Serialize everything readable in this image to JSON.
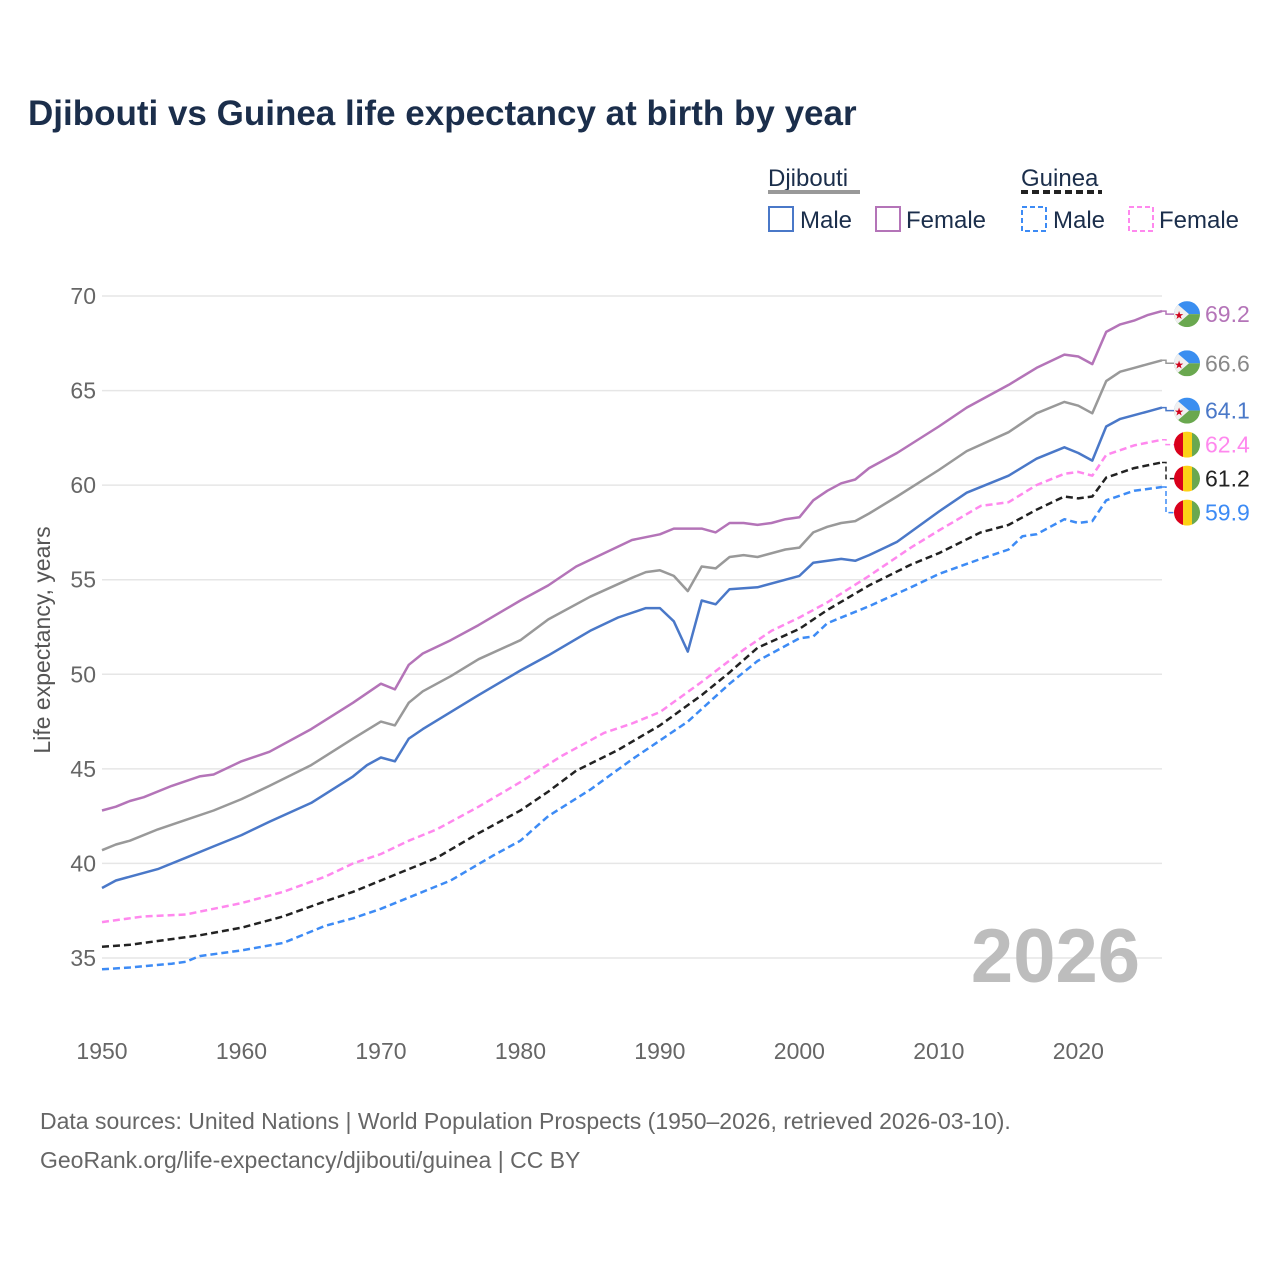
{
  "title": "Djibouti vs Guinea life expectancy at birth by year",
  "sources": {
    "line1": "Data sources: United Nations | World Population Prospects (1950–2026, retrieved 2026-03-10).",
    "line2": "GeoRank.org/life-expectancy/djibouti/guinea | CC BY"
  },
  "watermark_year": "2026",
  "chart_data": {
    "type": "line",
    "title": "Djibouti vs Guinea life expectancy at birth by year",
    "xlabel": "",
    "ylabel": "Life expectancy, years",
    "xlim": [
      1950,
      2026
    ],
    "ylim": [
      33,
      71
    ],
    "xticks": [
      1950,
      1960,
      1970,
      1980,
      1990,
      2000,
      2010,
      2020
    ],
    "yticks": [
      35,
      40,
      45,
      50,
      55,
      60,
      65,
      70
    ],
    "grid": true,
    "legend": {
      "placement": "top-right",
      "groups": [
        {
          "name": "Djibouti",
          "items": [
            "Male",
            "Female"
          ]
        },
        {
          "name": "Guinea",
          "items": [
            "Male",
            "Female"
          ]
        }
      ]
    },
    "series": [
      {
        "name": "Djibouti Female",
        "country": "Djibouti",
        "color": "#b474b8",
        "dashed": false,
        "end_label": "69.2",
        "points": [
          [
            1950,
            42.8
          ],
          [
            1951,
            43.0
          ],
          [
            1952,
            43.3
          ],
          [
            1953,
            43.5
          ],
          [
            1955,
            44.1
          ],
          [
            1957,
            44.6
          ],
          [
            1958,
            44.7
          ],
          [
            1960,
            45.4
          ],
          [
            1962,
            45.9
          ],
          [
            1965,
            47.1
          ],
          [
            1968,
            48.5
          ],
          [
            1970,
            49.5
          ],
          [
            1971,
            49.2
          ],
          [
            1972,
            50.5
          ],
          [
            1973,
            51.1
          ],
          [
            1975,
            51.8
          ],
          [
            1977,
            52.6
          ],
          [
            1980,
            53.9
          ],
          [
            1982,
            54.7
          ],
          [
            1984,
            55.7
          ],
          [
            1986,
            56.4
          ],
          [
            1988,
            57.1
          ],
          [
            1990,
            57.4
          ],
          [
            1991,
            57.7
          ],
          [
            1993,
            57.7
          ],
          [
            1994,
            57.5
          ],
          [
            1995,
            58.0
          ],
          [
            1996,
            58.0
          ],
          [
            1997,
            57.9
          ],
          [
            1998,
            58.0
          ],
          [
            1999,
            58.2
          ],
          [
            2000,
            58.3
          ],
          [
            2001,
            59.2
          ],
          [
            2002,
            59.7
          ],
          [
            2003,
            60.1
          ],
          [
            2004,
            60.3
          ],
          [
            2005,
            60.9
          ],
          [
            2007,
            61.7
          ],
          [
            2010,
            63.1
          ],
          [
            2012,
            64.1
          ],
          [
            2015,
            65.3
          ],
          [
            2017,
            66.2
          ],
          [
            2019,
            66.9
          ],
          [
            2020,
            66.8
          ],
          [
            2021,
            66.4
          ],
          [
            2022,
            68.1
          ],
          [
            2023,
            68.5
          ],
          [
            2024,
            68.7
          ],
          [
            2025,
            69.0
          ],
          [
            2026,
            69.2
          ]
        ]
      },
      {
        "name": "Djibouti",
        "country": "Djibouti",
        "color": "#999999",
        "dashed": false,
        "end_label": "66.6",
        "points": [
          [
            1950,
            40.7
          ],
          [
            1951,
            41.0
          ],
          [
            1952,
            41.2
          ],
          [
            1954,
            41.8
          ],
          [
            1956,
            42.3
          ],
          [
            1958,
            42.8
          ],
          [
            1960,
            43.4
          ],
          [
            1962,
            44.1
          ],
          [
            1965,
            45.2
          ],
          [
            1968,
            46.6
          ],
          [
            1970,
            47.5
          ],
          [
            1971,
            47.3
          ],
          [
            1972,
            48.5
          ],
          [
            1973,
            49.1
          ],
          [
            1975,
            49.9
          ],
          [
            1977,
            50.8
          ],
          [
            1980,
            51.8
          ],
          [
            1982,
            52.9
          ],
          [
            1985,
            54.1
          ],
          [
            1988,
            55.1
          ],
          [
            1989,
            55.4
          ],
          [
            1990,
            55.5
          ],
          [
            1991,
            55.2
          ],
          [
            1992,
            54.4
          ],
          [
            1993,
            55.7
          ],
          [
            1994,
            55.6
          ],
          [
            1995,
            56.2
          ],
          [
            1996,
            56.3
          ],
          [
            1997,
            56.2
          ],
          [
            1999,
            56.6
          ],
          [
            2000,
            56.7
          ],
          [
            2001,
            57.5
          ],
          [
            2002,
            57.8
          ],
          [
            2003,
            58.0
          ],
          [
            2004,
            58.1
          ],
          [
            2005,
            58.5
          ],
          [
            2007,
            59.4
          ],
          [
            2010,
            60.8
          ],
          [
            2012,
            61.8
          ],
          [
            2015,
            62.8
          ],
          [
            2017,
            63.8
          ],
          [
            2019,
            64.4
          ],
          [
            2020,
            64.2
          ],
          [
            2021,
            63.8
          ],
          [
            2022,
            65.5
          ],
          [
            2023,
            66.0
          ],
          [
            2024,
            66.2
          ],
          [
            2025,
            66.4
          ],
          [
            2026,
            66.6
          ]
        ]
      },
      {
        "name": "Djibouti Male",
        "country": "Djibouti",
        "color": "#4a78c8",
        "dashed": false,
        "end_label": "64.1",
        "points": [
          [
            1950,
            38.7
          ],
          [
            1951,
            39.1
          ],
          [
            1952,
            39.3
          ],
          [
            1954,
            39.7
          ],
          [
            1956,
            40.3
          ],
          [
            1958,
            40.9
          ],
          [
            1960,
            41.5
          ],
          [
            1962,
            42.2
          ],
          [
            1965,
            43.2
          ],
          [
            1968,
            44.6
          ],
          [
            1969,
            45.2
          ],
          [
            1970,
            45.6
          ],
          [
            1971,
            45.4
          ],
          [
            1972,
            46.6
          ],
          [
            1973,
            47.1
          ],
          [
            1975,
            48.0
          ],
          [
            1977,
            48.9
          ],
          [
            1980,
            50.2
          ],
          [
            1982,
            51.0
          ],
          [
            1985,
            52.3
          ],
          [
            1987,
            53.0
          ],
          [
            1989,
            53.5
          ],
          [
            1990,
            53.5
          ],
          [
            1991,
            52.8
          ],
          [
            1992,
            51.2
          ],
          [
            1993,
            53.9
          ],
          [
            1994,
            53.7
          ],
          [
            1995,
            54.5
          ],
          [
            1997,
            54.6
          ],
          [
            2000,
            55.2
          ],
          [
            2001,
            55.9
          ],
          [
            2003,
            56.1
          ],
          [
            2004,
            56.0
          ],
          [
            2005,
            56.3
          ],
          [
            2007,
            57.0
          ],
          [
            2010,
            58.6
          ],
          [
            2012,
            59.6
          ],
          [
            2015,
            60.5
          ],
          [
            2017,
            61.4
          ],
          [
            2019,
            62.0
          ],
          [
            2020,
            61.7
          ],
          [
            2021,
            61.3
          ],
          [
            2022,
            63.1
          ],
          [
            2023,
            63.5
          ],
          [
            2024,
            63.7
          ],
          [
            2025,
            63.9
          ],
          [
            2026,
            64.1
          ]
        ]
      },
      {
        "name": "Guinea Female",
        "country": "Guinea",
        "color": "#ff88ee",
        "dashed": true,
        "end_label": "62.4",
        "points": [
          [
            1950,
            36.9
          ],
          [
            1953,
            37.2
          ],
          [
            1956,
            37.3
          ],
          [
            1958,
            37.6
          ],
          [
            1960,
            37.9
          ],
          [
            1963,
            38.5
          ],
          [
            1966,
            39.3
          ],
          [
            1968,
            40.0
          ],
          [
            1970,
            40.5
          ],
          [
            1972,
            41.2
          ],
          [
            1974,
            41.8
          ],
          [
            1977,
            43.0
          ],
          [
            1980,
            44.3
          ],
          [
            1983,
            45.7
          ],
          [
            1986,
            46.9
          ],
          [
            1988,
            47.4
          ],
          [
            1990,
            48.0
          ],
          [
            1993,
            49.6
          ],
          [
            1996,
            51.3
          ],
          [
            1998,
            52.3
          ],
          [
            2000,
            53.0
          ],
          [
            2002,
            53.8
          ],
          [
            2005,
            55.2
          ],
          [
            2008,
            56.7
          ],
          [
            2010,
            57.6
          ],
          [
            2013,
            58.9
          ],
          [
            2015,
            59.1
          ],
          [
            2017,
            60.0
          ],
          [
            2019,
            60.6
          ],
          [
            2020,
            60.7
          ],
          [
            2021,
            60.5
          ],
          [
            2022,
            61.6
          ],
          [
            2024,
            62.1
          ],
          [
            2026,
            62.4
          ]
        ]
      },
      {
        "name": "Guinea",
        "country": "Guinea",
        "color": "#222222",
        "dashed": true,
        "end_label": "61.2",
        "points": [
          [
            1950,
            35.6
          ],
          [
            1952,
            35.7
          ],
          [
            1955,
            36.0
          ],
          [
            1957,
            36.2
          ],
          [
            1960,
            36.6
          ],
          [
            1963,
            37.2
          ],
          [
            1966,
            38.0
          ],
          [
            1968,
            38.5
          ],
          [
            1970,
            39.1
          ],
          [
            1972,
            39.7
          ],
          [
            1974,
            40.3
          ],
          [
            1977,
            41.6
          ],
          [
            1980,
            42.8
          ],
          [
            1982,
            43.8
          ],
          [
            1984,
            44.9
          ],
          [
            1987,
            46.0
          ],
          [
            1990,
            47.3
          ],
          [
            1993,
            48.9
          ],
          [
            1995,
            50.1
          ],
          [
            1997,
            51.4
          ],
          [
            2000,
            52.4
          ],
          [
            2002,
            53.4
          ],
          [
            2005,
            54.7
          ],
          [
            2008,
            55.8
          ],
          [
            2010,
            56.4
          ],
          [
            2013,
            57.5
          ],
          [
            2015,
            57.9
          ],
          [
            2017,
            58.7
          ],
          [
            2019,
            59.4
          ],
          [
            2020,
            59.3
          ],
          [
            2021,
            59.4
          ],
          [
            2022,
            60.4
          ],
          [
            2024,
            60.9
          ],
          [
            2026,
            61.2
          ]
        ]
      },
      {
        "name": "Guinea Male",
        "country": "Guinea",
        "color": "#3d8bf5",
        "dashed": true,
        "end_label": "59.9",
        "points": [
          [
            1950,
            34.4
          ],
          [
            1952,
            34.5
          ],
          [
            1955,
            34.7
          ],
          [
            1956,
            34.8
          ],
          [
            1957,
            35.1
          ],
          [
            1960,
            35.4
          ],
          [
            1963,
            35.8
          ],
          [
            1966,
            36.7
          ],
          [
            1968,
            37.1
          ],
          [
            1970,
            37.6
          ],
          [
            1972,
            38.2
          ],
          [
            1975,
            39.1
          ],
          [
            1978,
            40.4
          ],
          [
            1980,
            41.2
          ],
          [
            1982,
            42.5
          ],
          [
            1985,
            43.9
          ],
          [
            1988,
            45.5
          ],
          [
            1990,
            46.5
          ],
          [
            1992,
            47.5
          ],
          [
            1995,
            49.5
          ],
          [
            1997,
            50.7
          ],
          [
            2000,
            51.9
          ],
          [
            2001,
            52.0
          ],
          [
            2002,
            52.7
          ],
          [
            2005,
            53.6
          ],
          [
            2008,
            54.6
          ],
          [
            2010,
            55.3
          ],
          [
            2013,
            56.1
          ],
          [
            2015,
            56.6
          ],
          [
            2016,
            57.3
          ],
          [
            2017,
            57.4
          ],
          [
            2019,
            58.2
          ],
          [
            2020,
            58.0
          ],
          [
            2021,
            58.1
          ],
          [
            2022,
            59.2
          ],
          [
            2024,
            59.7
          ],
          [
            2026,
            59.9
          ]
        ]
      }
    ]
  }
}
